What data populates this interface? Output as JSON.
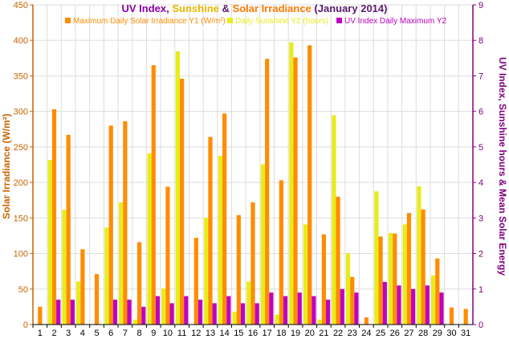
{
  "colors": {
    "irradiance": "#FF8C00",
    "sunshine": "#E8EC1A",
    "uv": "#C000C0",
    "title_uv": "#8B00A8",
    "title_sunshine": "#E6B800",
    "title_irradiance": "#FF7A00",
    "title_rest": "#5B1A6E",
    "left_axis": "#C86400",
    "right_axis": "#800080",
    "grid": "#DDDDDD"
  },
  "title": {
    "part1": "UV Index",
    "sep1": ", ",
    "part2": "Sunshine",
    "sep2": " & ",
    "part3": "Solar Irradiance",
    "part4": " (January 2014)"
  },
  "chart_data": {
    "type": "bar",
    "categories": [
      "1",
      "2",
      "3",
      "4",
      "5",
      "6",
      "7",
      "8",
      "9",
      "10",
      "11",
      "12",
      "13",
      "14",
      "15",
      "16",
      "17",
      "18",
      "19",
      "20",
      "21",
      "22",
      "23",
      "24",
      "25",
      "26",
      "27",
      "28",
      "29",
      "30",
      "31"
    ],
    "series": [
      {
        "name": "Maximum Daily Solar Irradiance Y1 (W/m²)",
        "axis": "left",
        "values": [
          25,
          303,
          267,
          106,
          71,
          280,
          286,
          116,
          365,
          194,
          346,
          122,
          264,
          297,
          154,
          172,
          374,
          203,
          376,
          393,
          127,
          180,
          67,
          10,
          124,
          128,
          157,
          162,
          93,
          24,
          22
        ]
      },
      {
        "name": "Daily Sunshine Y2 (hours)",
        "axis": "right",
        "values": [
          0,
          4.63,
          3.23,
          1.21,
          0,
          2.73,
          3.44,
          0.14,
          4.82,
          1.02,
          7.69,
          0,
          3.0,
          4.75,
          0.36,
          1.21,
          4.51,
          0.28,
          7.95,
          2.82,
          0.14,
          5.89,
          2.0,
          0,
          3.75,
          2.58,
          2.82,
          3.89,
          1.38,
          0,
          0
        ]
      },
      {
        "name": "UV Index Daily Maximum Y2",
        "axis": "right",
        "values": [
          0,
          0.7,
          0.7,
          0,
          0,
          0.7,
          0.7,
          0.5,
          0.8,
          0.6,
          0.8,
          0.7,
          0.6,
          0.8,
          0.6,
          0.6,
          0.9,
          0.8,
          0.9,
          0.8,
          0.7,
          1.0,
          0.9,
          0,
          1.2,
          1.1,
          1.0,
          1.1,
          0.9,
          0,
          0
        ]
      }
    ],
    "left_axis": {
      "label": "Solar Irradiance (W/m²)",
      "min": 0,
      "max": 450,
      "ticks": [
        "0",
        "50",
        "100",
        "150",
        "200",
        "250",
        "300",
        "350",
        "400",
        "450"
      ]
    },
    "right_axis": {
      "label": "UV Index, Sunshine hours & Mean Solar Energy",
      "min": 0,
      "max": 9,
      "ticks": [
        "0",
        "1",
        "2",
        "3",
        "4",
        "5",
        "6",
        "7",
        "8",
        "9"
      ]
    },
    "grid": true,
    "legend_position": "top-center"
  }
}
